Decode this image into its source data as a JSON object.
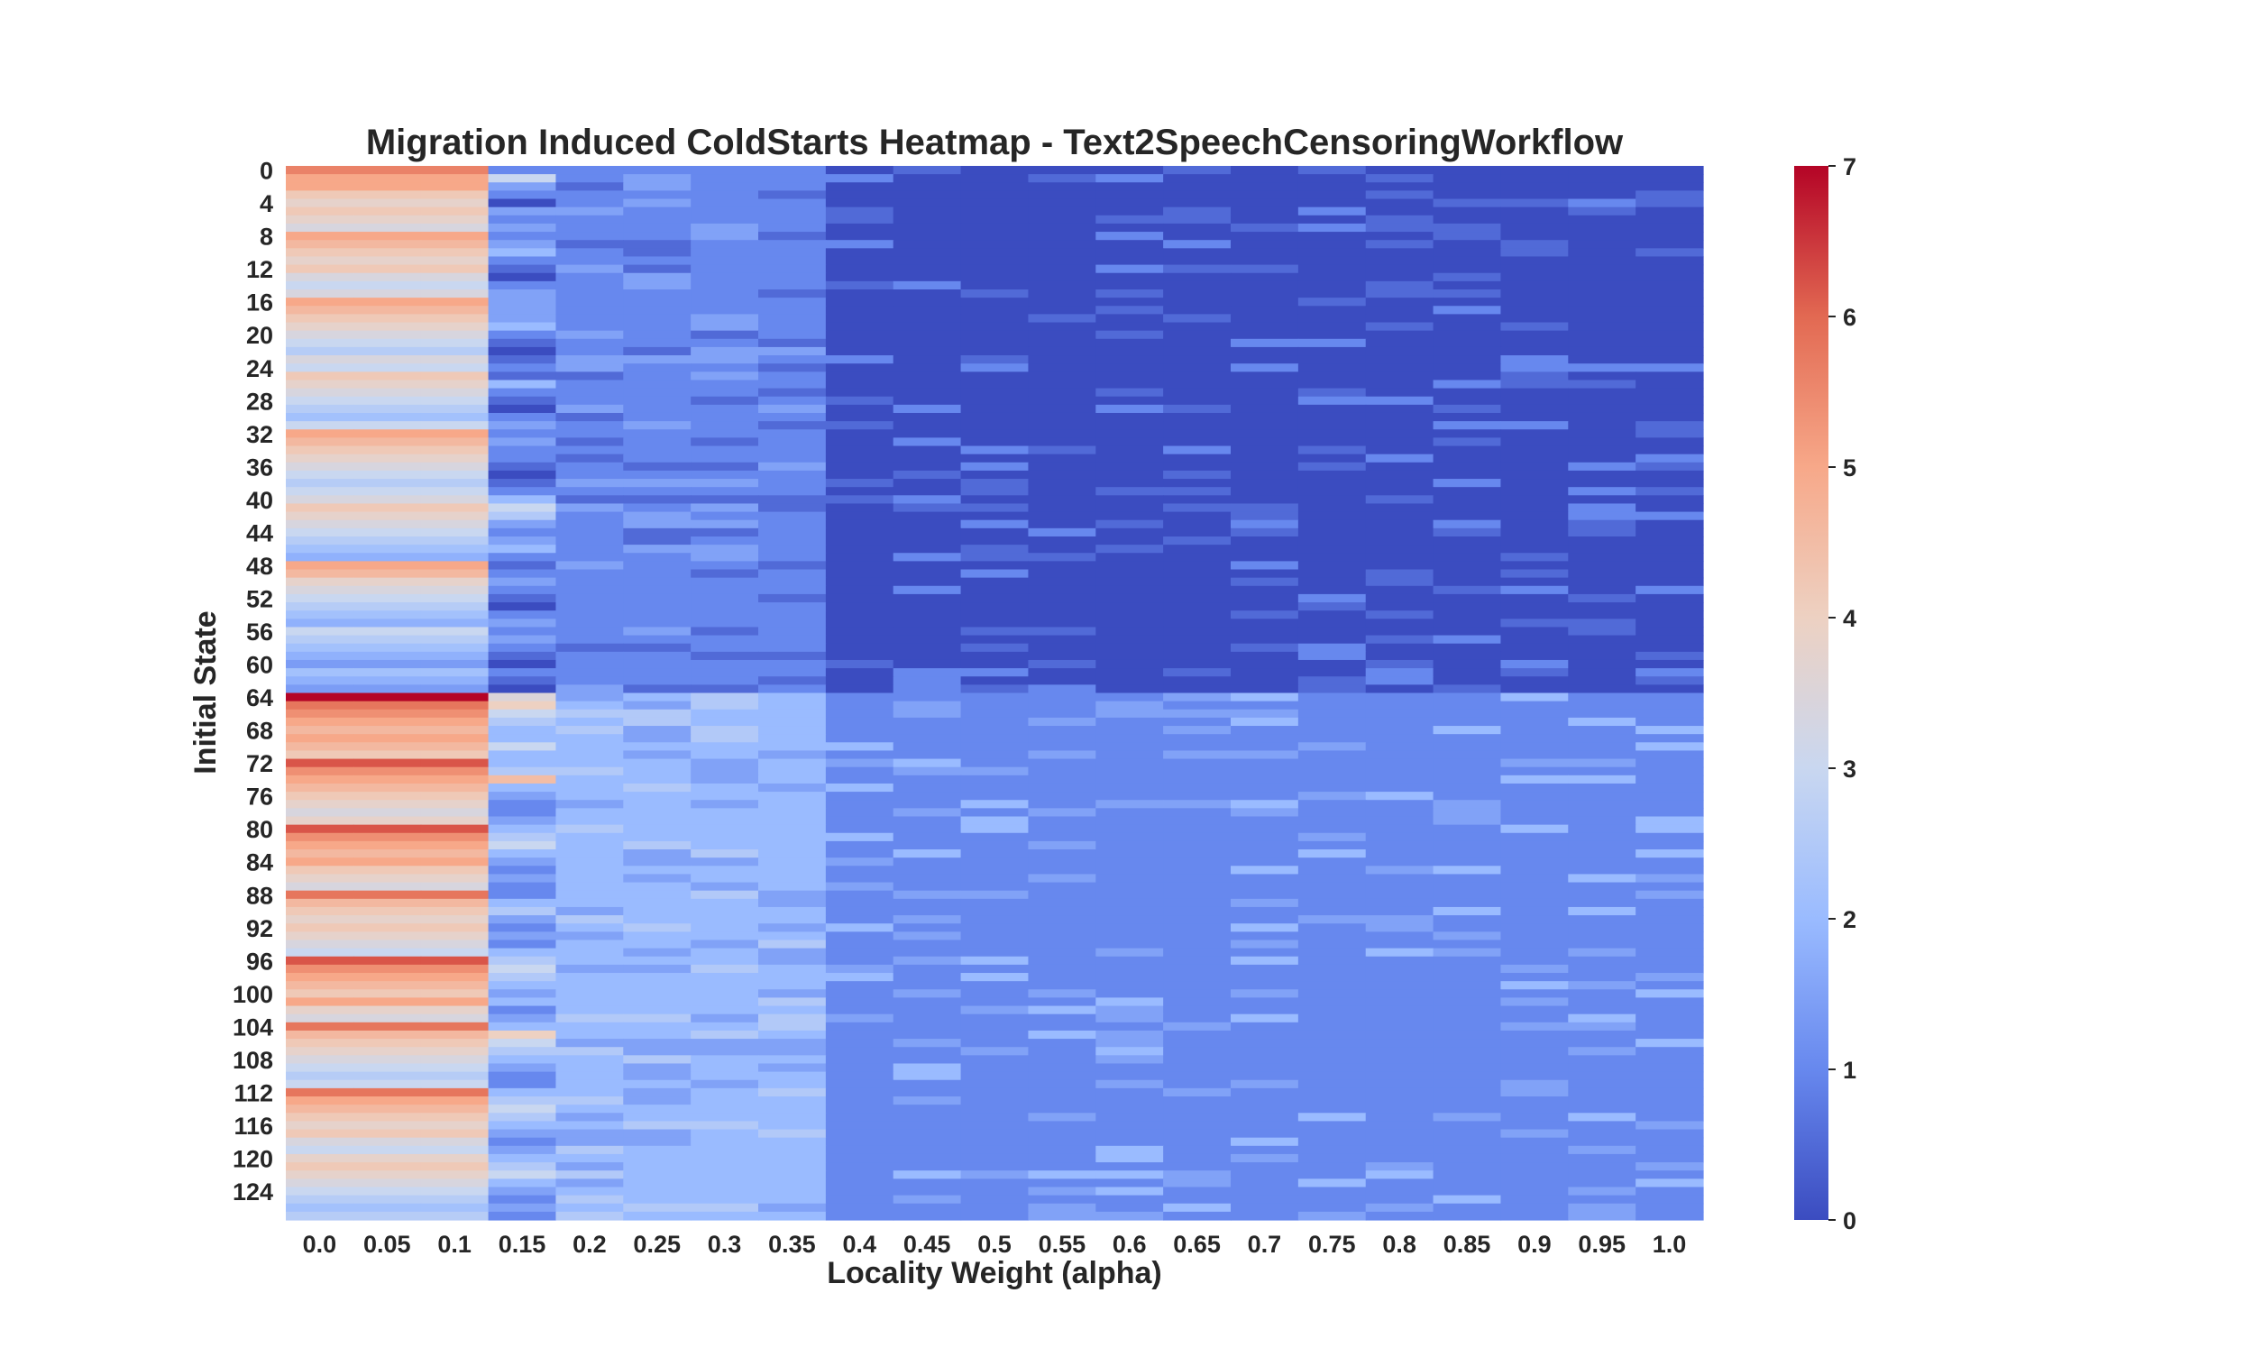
{
  "chart_data": {
    "type": "heatmap",
    "title": "Migration Induced ColdStarts Heatmap - Text2SpeechCensoringWorkflow",
    "xlabel": "Locality Weight (alpha)",
    "ylabel": "Initial State",
    "x_categories": [
      "0.0",
      "0.05",
      "0.1",
      "0.15",
      "0.2",
      "0.25",
      "0.3",
      "0.35",
      "0.4",
      "0.45",
      "0.5",
      "0.55",
      "0.6",
      "0.65",
      "0.7",
      "0.75",
      "0.8",
      "0.85",
      "0.9",
      "0.95",
      "1.0"
    ],
    "y_tick_labels": [
      "0",
      "4",
      "8",
      "12",
      "16",
      "20",
      "24",
      "28",
      "32",
      "36",
      "40",
      "44",
      "48",
      "52",
      "56",
      "60",
      "64",
      "68",
      "72",
      "76",
      "80",
      "84",
      "88",
      "92",
      "96",
      "100",
      "104",
      "108",
      "112",
      "116",
      "120",
      "124"
    ],
    "y_tick_step": 4,
    "rows": 128,
    "colorbar": {
      "min": 0,
      "max": 7,
      "ticks": [
        "0",
        "1",
        "2",
        "3",
        "4",
        "5",
        "6",
        "7"
      ],
      "colormap": "coolwarm"
    },
    "colormap_stops": [
      "#3b4cc0",
      "#6788ee",
      "#9abbff",
      "#c9d7f0",
      "#edd1c2",
      "#f7a889",
      "#e26952",
      "#b40426"
    ],
    "grid": false,
    "legend": "colorbar at right",
    "low_alpha_values": [
      5.6,
      5.0,
      5.0,
      4.2,
      3.8,
      4.2,
      3.8,
      3.4,
      5.0,
      4.6,
      4.2,
      3.8,
      4.2,
      3.4,
      3.0,
      3.4,
      5.0,
      4.6,
      4.2,
      3.8,
      3.4,
      3.0,
      2.6,
      3.4,
      3.0,
      4.2,
      3.8,
      3.4,
      3.0,
      2.6,
      2.2,
      3.0,
      5.0,
      4.6,
      4.2,
      3.8,
      3.4,
      3.0,
      2.6,
      3.0,
      3.4,
      4.2,
      3.8,
      3.4,
      3.0,
      2.6,
      2.2,
      1.8,
      5.0,
      4.6,
      3.8,
      3.4,
      3.0,
      2.6,
      2.2,
      1.8,
      3.0,
      2.6,
      2.2,
      1.8,
      1.4,
      2.2,
      1.8,
      1.4,
      7.0,
      5.8,
      5.4,
      5.0,
      4.6,
      5.0,
      4.6,
      4.2,
      6.2,
      5.4,
      5.0,
      4.6,
      4.2,
      3.8,
      3.4,
      3.8,
      6.2,
      5.4,
      5.0,
      4.6,
      5.0,
      4.2,
      3.8,
      3.4,
      5.8,
      4.6,
      4.2,
      3.8,
      4.2,
      3.8,
      3.4,
      3.0,
      6.2,
      5.4,
      5.0,
      4.6,
      4.2,
      5.0,
      3.8,
      3.4,
      5.8,
      4.6,
      4.2,
      3.8,
      3.4,
      3.0,
      2.6,
      3.0,
      5.8,
      5.0,
      4.6,
      4.2,
      3.8,
      4.2,
      3.4,
      3.0,
      3.8,
      4.2,
      3.8,
      3.4,
      3.0,
      2.6,
      2.2,
      2.6
    ],
    "alpha_015_values": [
      1.0,
      3.0,
      1.5,
      1.0,
      0.0,
      1.5,
      1.0,
      1.5,
      1.0,
      1.5,
      2.0,
      1.0,
      0.5,
      0.0,
      1.0,
      1.5,
      1.5,
      1.5,
      1.5,
      2.0,
      1.0,
      0.5,
      0.0,
      0.5,
      1.0,
      0.5,
      2.0,
      1.0,
      0.5,
      0.0,
      1.0,
      1.5,
      1.0,
      1.5,
      1.0,
      1.0,
      0.5,
      0.0,
      0.5,
      1.0,
      2.0,
      3.0,
      2.5,
      1.5,
      1.0,
      1.5,
      2.0,
      1.0,
      0.5,
      1.0,
      1.5,
      1.0,
      0.5,
      0.0,
      1.0,
      1.5,
      1.0,
      1.5,
      1.0,
      0.5,
      0.0,
      1.0,
      0.5,
      0.0,
      3.5,
      4.0,
      3.0,
      2.5,
      2.0,
      2.0,
      3.0,
      2.0,
      2.0,
      2.5,
      4.5,
      2.0,
      1.5,
      1.0,
      1.0,
      1.5,
      2.0,
      2.5,
      3.0,
      2.0,
      1.5,
      1.0,
      1.5,
      1.0,
      1.0,
      2.0,
      2.5,
      1.5,
      1.0,
      1.5,
      1.0,
      2.0,
      2.5,
      3.0,
      2.5,
      2.0,
      1.5,
      2.0,
      1.0,
      1.5,
      2.0,
      4.0,
      3.0,
      2.5,
      2.0,
      1.5,
      1.0,
      1.0,
      2.0,
      2.5,
      3.0,
      2.5,
      2.0,
      1.5,
      1.0,
      1.5,
      2.0,
      2.5,
      3.0,
      2.0,
      1.5,
      1.0,
      1.5,
      1.0
    ],
    "upper_half_levels": [
      0.0,
      0.5,
      1.0,
      1.5
    ],
    "lower_half_levels": [
      1.0,
      1.5,
      2.0,
      2.5
    ]
  }
}
